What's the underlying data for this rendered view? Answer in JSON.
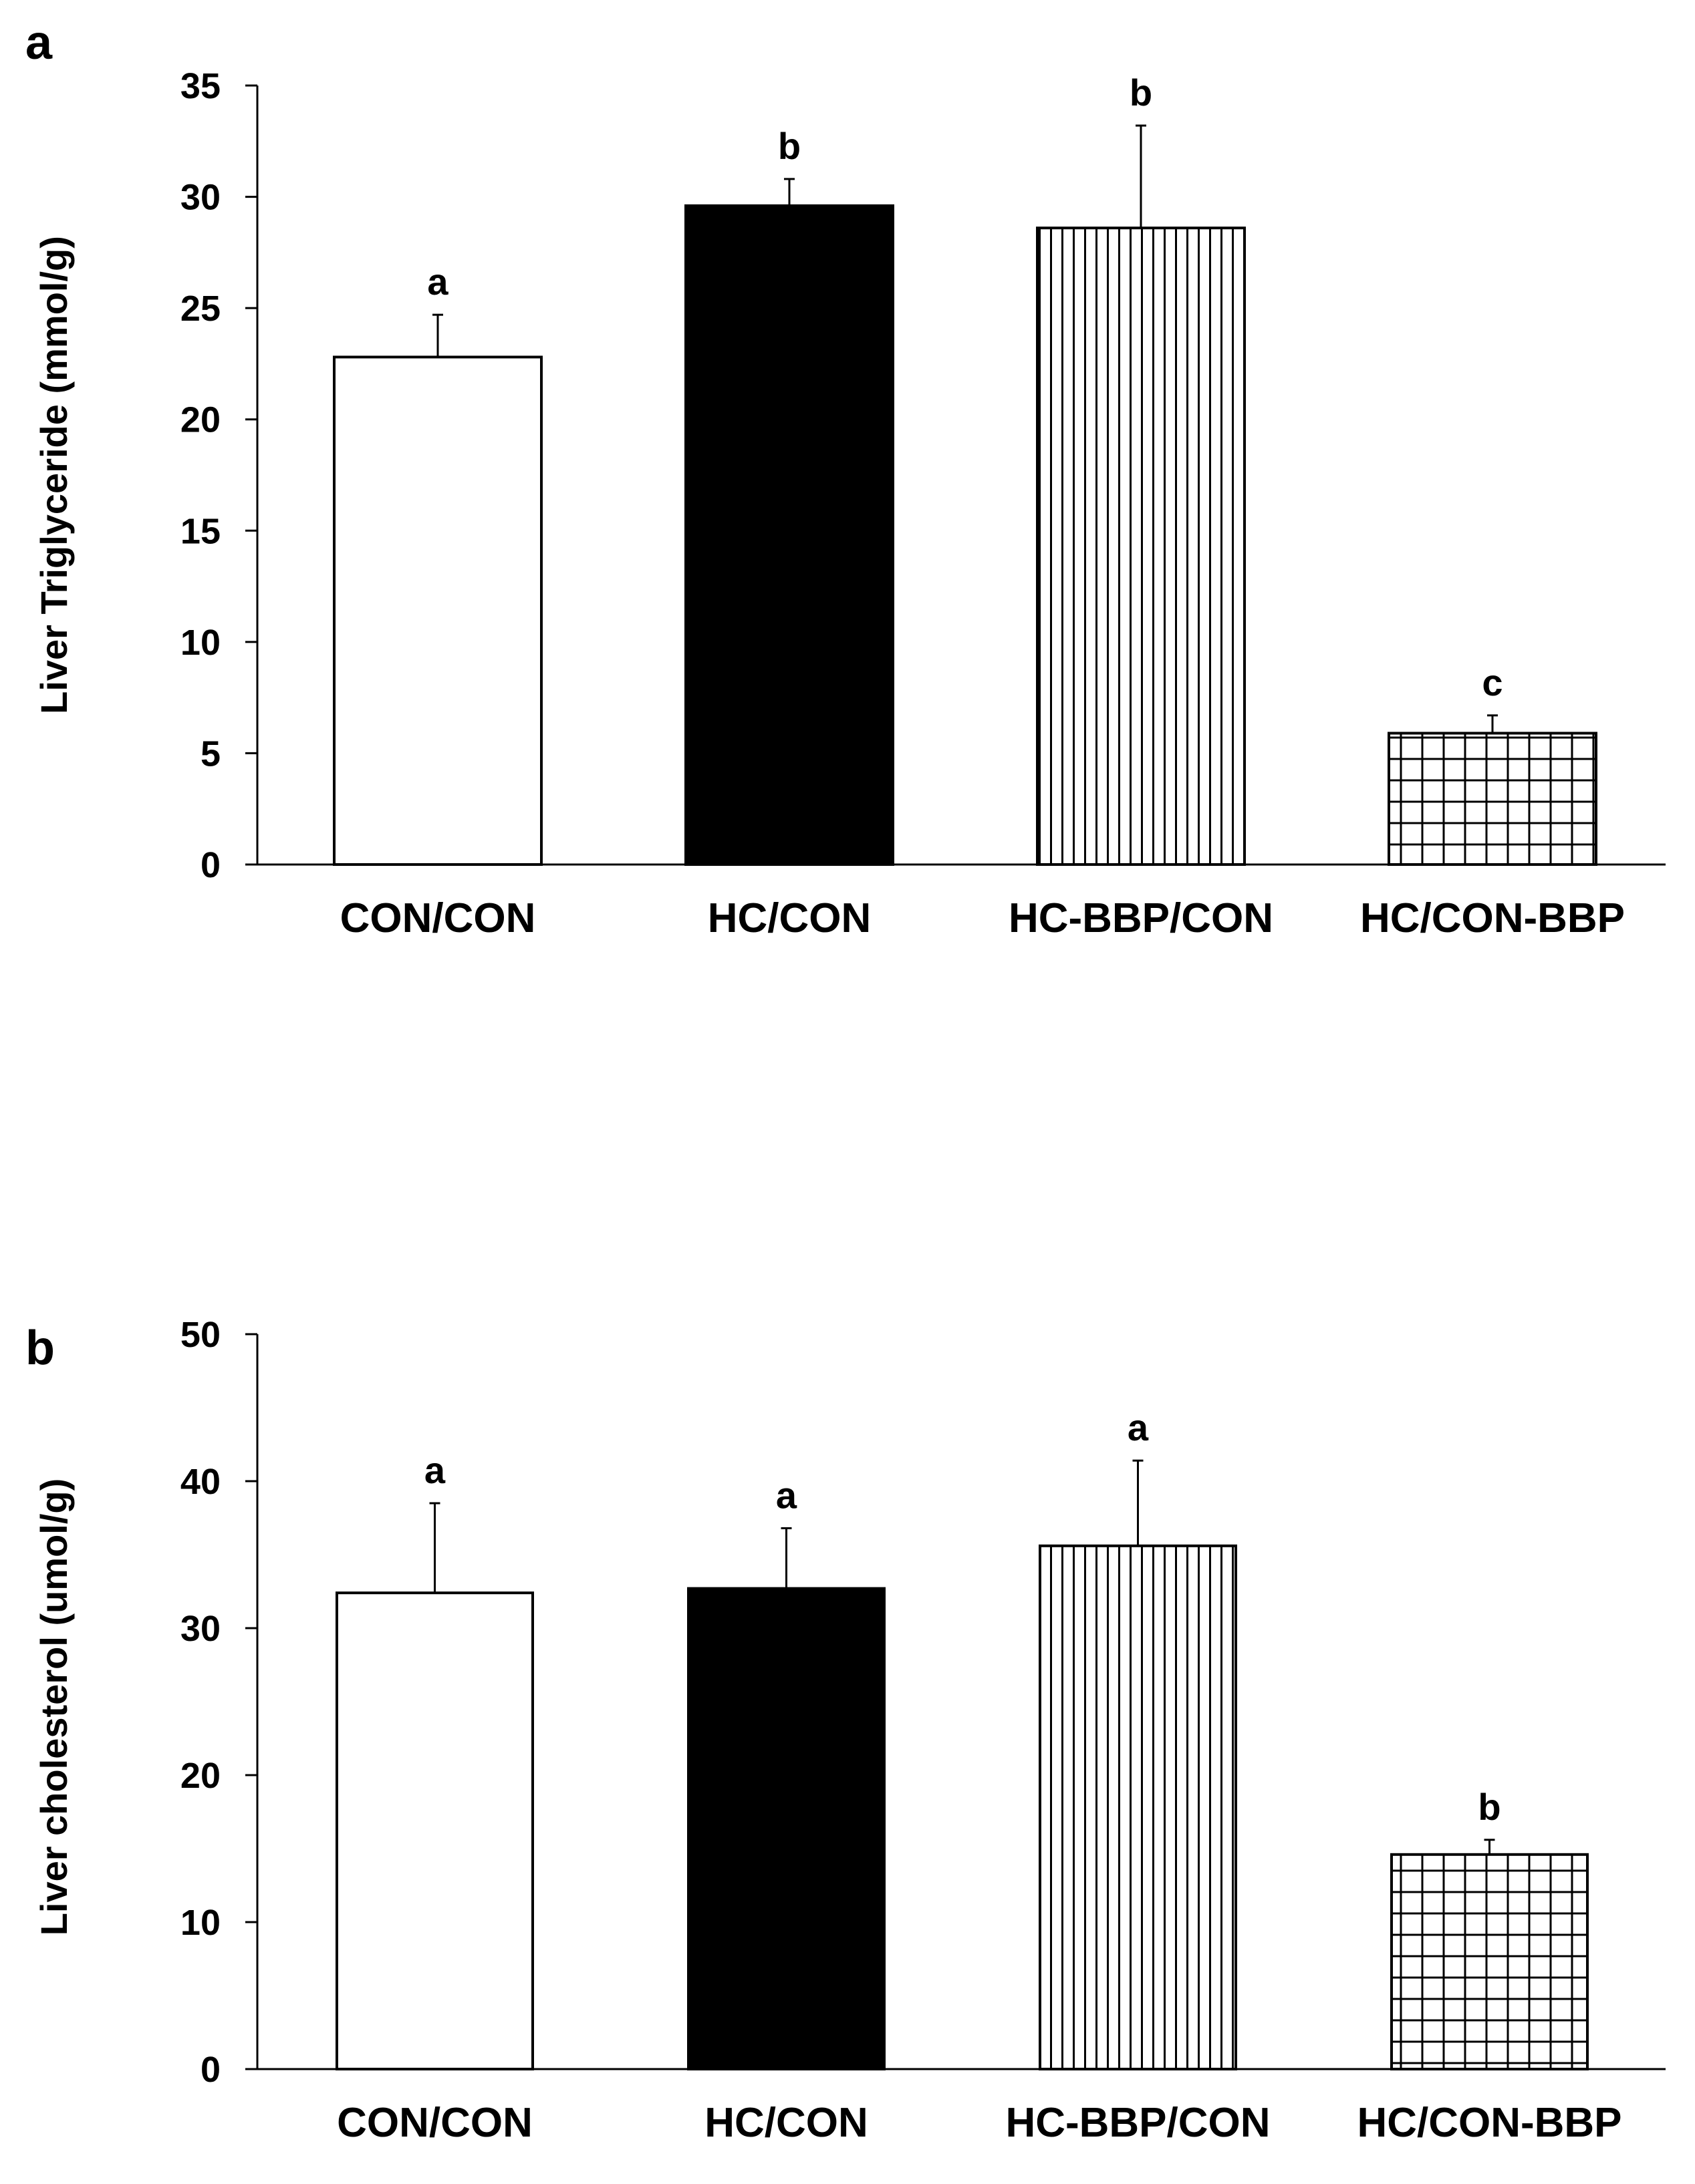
{
  "chart_data": [
    {
      "type": "bar",
      "panel": "a",
      "title": "",
      "xlabel": "",
      "ylabel": "Liver Triglyceride (mmol/g)",
      "ylim": [
        0,
        35
      ],
      "yticks": [
        0,
        5,
        10,
        15,
        20,
        25,
        30,
        35
      ],
      "categories": [
        "CON/CON",
        "HC/CON",
        "HC-BBP/CON",
        "HC/CON-BBP"
      ],
      "values": [
        22.8,
        29.6,
        28.6,
        5.9
      ],
      "errors": [
        1.9,
        1.2,
        4.6,
        0.8
      ],
      "significance": [
        "a",
        "b",
        "b",
        "c"
      ],
      "fills": [
        "white",
        "black",
        "vertical-lines",
        "grid"
      ]
    },
    {
      "type": "bar",
      "panel": "b",
      "title": "",
      "xlabel": "",
      "ylabel": "Liver cholesterol (umol/g)",
      "ylim": [
        0,
        50
      ],
      "yticks": [
        0,
        10,
        20,
        30,
        40,
        50
      ],
      "categories": [
        "CON/CON",
        "HC/CON",
        "HC-BBP/CON",
        "HC/CON-BBP"
      ],
      "values": [
        32.4,
        32.7,
        35.6,
        14.6
      ],
      "errors": [
        6.1,
        4.1,
        5.8,
        1.0
      ],
      "significance": [
        "a",
        "a",
        "a",
        "b"
      ],
      "fills": [
        "white",
        "black",
        "vertical-lines",
        "grid"
      ]
    }
  ],
  "colors": {
    "ink": "#000000",
    "paper": "#ffffff"
  }
}
